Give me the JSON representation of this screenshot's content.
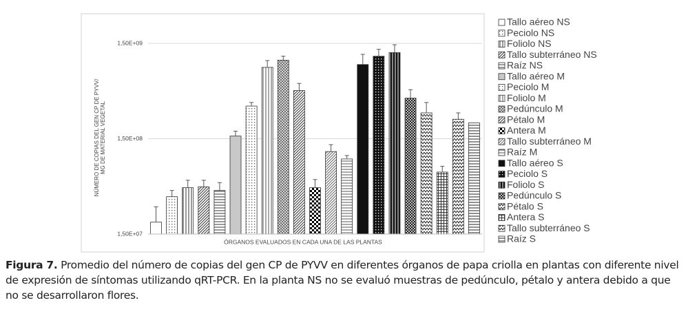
{
  "chart_data": {
    "type": "bar",
    "x_label": "ÓRGANOS EVALUADOS EN CADA UNA DE LAS PLANTAS",
    "y_label": [
      "NÚMERO DE COPIAS DEL GEN CP DE PYVV/",
      "MG DE MATERIAL VEGETAL"
    ],
    "log_scale": true,
    "grid": true,
    "legend": "right",
    "ylim": [
      15000000,
      1500000000
    ],
    "yticks": [
      {
        "value": 15000000,
        "label": "1,50E+07"
      },
      {
        "value": 150000000,
        "label": "1,50E+08"
      },
      {
        "value": 1500000000,
        "label": "1,50E+09"
      }
    ],
    "series": [
      {
        "name": "Tallo aéreo NS",
        "color": "#ffffff",
        "pattern": "solid",
        "values": [
          20000000
        ],
        "errors": [
          9000000
        ]
      },
      {
        "name": "Peciolo NS",
        "color": "#555555",
        "pattern": "dots",
        "values": [
          37000000
        ],
        "errors": [
          6000000
        ]
      },
      {
        "name": "Foliolo NS",
        "color": "#333333",
        "pattern": "vlines",
        "values": [
          46000000
        ],
        "errors": [
          9000000
        ]
      },
      {
        "name": "Tallo subterráneo NS",
        "color": "#333333",
        "pattern": "diag",
        "values": [
          47000000
        ],
        "errors": [
          8000000
        ]
      },
      {
        "name": "Raíz NS",
        "color": "#333333",
        "pattern": "hlines",
        "values": [
          43000000
        ],
        "errors": [
          9000000
        ]
      },
      {
        "name": "Tallo aéreo M",
        "color": "#c8c8c8",
        "pattern": "solid",
        "values": [
          160000000
        ],
        "errors": [
          20000000
        ]
      },
      {
        "name": "Peciolo M",
        "color": "#555555",
        "pattern": "dots",
        "values": [
          330000000
        ],
        "errors": [
          30000000
        ]
      },
      {
        "name": "Foliolo M",
        "color": "#555555",
        "pattern": "vlines",
        "values": [
          840000000
        ],
        "errors": [
          150000000
        ]
      },
      {
        "name": "Pedúnculo M",
        "color": "#666666",
        "pattern": "crosshatch",
        "values": [
          1000000000
        ],
        "errors": [
          100000000
        ]
      },
      {
        "name": "Pétalo M",
        "color": "#333333",
        "pattern": "diag",
        "values": [
          480000000
        ],
        "errors": [
          90000000
        ]
      },
      {
        "name": "Antera M",
        "color": "#000000",
        "pattern": "checker",
        "values": [
          46000000
        ],
        "errors": [
          10000000
        ]
      },
      {
        "name": "Tallo subterráneo M",
        "color": "#666666",
        "pattern": "diag",
        "values": [
          110000000
        ],
        "errors": [
          20000000
        ]
      },
      {
        "name": "Raíz M",
        "color": "#555555",
        "pattern": "hlines",
        "values": [
          92000000
        ],
        "errors": [
          8000000
        ]
      },
      {
        "name": "Tallo aéreo S",
        "color": "#111111",
        "pattern": "solid",
        "values": [
          900000000
        ],
        "errors": [
          250000000
        ]
      },
      {
        "name": "Peciolo S",
        "color": "#111111",
        "pattern": "dark-dots",
        "values": [
          1100000000
        ],
        "errors": [
          200000000
        ]
      },
      {
        "name": "Foliolo S",
        "color": "#111111",
        "pattern": "dark-vlines",
        "values": [
          1200000000
        ],
        "errors": [
          250000000
        ]
      },
      {
        "name": "Pedúnculo S",
        "color": "#111111",
        "pattern": "crosshatch",
        "values": [
          400000000
        ],
        "errors": [
          90000000
        ]
      },
      {
        "name": "Pétalo S",
        "color": "#222222",
        "pattern": "zigzag",
        "values": [
          280000000
        ],
        "errors": [
          80000000
        ]
      },
      {
        "name": "Antera S",
        "color": "#333333",
        "pattern": "grid",
        "values": [
          67000000
        ],
        "errors": [
          10000000
        ]
      },
      {
        "name": "Tallo subterráneo S",
        "color": "#222222",
        "pattern": "zigzag",
        "values": [
          240000000
        ],
        "errors": [
          40000000
        ]
      },
      {
        "name": "Raíz S",
        "color": "#222222",
        "pattern": "hlines",
        "values": [
          220000000
        ],
        "errors": [
          null
        ]
      }
    ]
  },
  "caption": {
    "label": "Figura 7.",
    "text": "Promedio del número de copias del gen CP de PYVV en diferentes órganos de papa criolla en plantas con diferente nivel de expresión de síntomas utilizando qRT-PCR. En la planta NS no se evaluó muestras de pedúnculo, pétalo y antera debido a que no se desarrollaron flores."
  }
}
